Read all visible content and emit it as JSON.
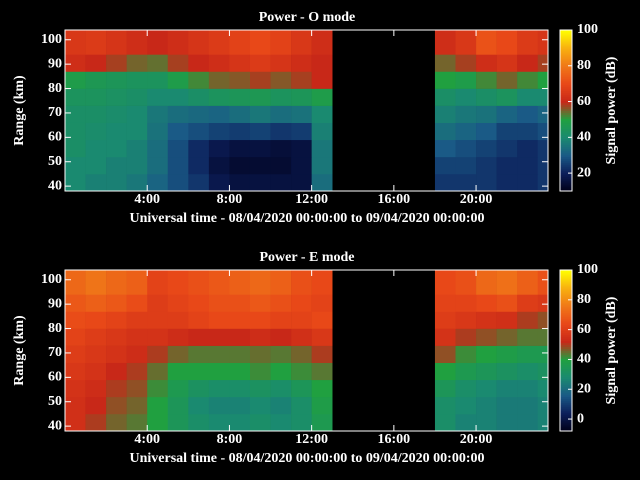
{
  "chart_data": [
    {
      "type": "heatmap",
      "title": "Power - O mode",
      "x_label": "Universal time - 08/04/2020 00:00:00 to 09/04/2020 00:00:00",
      "y_label": "Range (km)",
      "colorbar_label": "Signal power (dB)",
      "xlim": [
        0,
        23.5
      ],
      "ylim": [
        38,
        104
      ],
      "xticks": [
        {
          "value": 4,
          "label": "4:00"
        },
        {
          "value": 8,
          "label": "8:00"
        },
        {
          "value": 12,
          "label": "12:00"
        },
        {
          "value": 16,
          "label": "16:00"
        },
        {
          "value": 20,
          "label": "20:00"
        }
      ],
      "yticks": [
        40,
        50,
        60,
        70,
        80,
        90,
        100
      ],
      "clim": [
        10,
        100
      ],
      "cticks": [
        20,
        40,
        60,
        80,
        100
      ],
      "colors": [
        "#000018",
        "#0c1e5a",
        "#1a5a86",
        "#1a8a70",
        "#20a040",
        "#c82818",
        "#e84818",
        "#f07818",
        "#f8b010",
        "#ffff00"
      ],
      "x_edges": [
        0,
        1,
        2,
        3,
        4,
        5,
        6,
        7,
        8,
        9,
        10,
        11,
        12,
        13,
        14,
        15,
        16,
        17,
        18,
        19,
        20,
        21,
        22,
        23,
        23.5
      ],
      "y_edges": [
        38,
        45,
        52,
        59,
        66,
        73,
        80,
        87,
        94,
        104
      ],
      "z": [
        [
          40,
          38,
          38,
          36,
          32,
          28,
          24,
          18,
          16,
          16,
          16,
          16,
          34,
          null,
          null,
          null,
          null,
          null,
          24,
          24,
          24,
          22,
          22,
          24
        ],
        [
          40,
          40,
          38,
          38,
          34,
          28,
          22,
          16,
          14,
          14,
          14,
          16,
          36,
          null,
          null,
          null,
          null,
          null,
          26,
          26,
          24,
          22,
          22,
          24
        ],
        [
          42,
          40,
          40,
          38,
          34,
          28,
          22,
          18,
          16,
          16,
          15,
          16,
          36,
          null,
          null,
          null,
          null,
          null,
          30,
          28,
          26,
          24,
          22,
          24
        ],
        [
          42,
          41,
          40,
          40,
          35,
          30,
          28,
          26,
          25,
          26,
          24,
          25,
          38,
          null,
          null,
          null,
          null,
          null,
          34,
          32,
          30,
          26,
          26,
          28
        ],
        [
          42,
          42,
          41,
          40,
          36,
          34,
          33,
          32,
          34,
          36,
          34,
          35,
          40,
          null,
          null,
          null,
          null,
          null,
          38,
          36,
          35,
          32,
          30,
          32
        ],
        [
          44,
          44,
          43,
          42,
          40,
          40,
          42,
          44,
          45,
          46,
          44,
          45,
          48,
          null,
          null,
          null,
          null,
          null,
          42,
          40,
          42,
          44,
          40,
          40
        ],
        [
          48,
          46,
          45,
          44,
          44,
          48,
          52,
          55,
          56,
          58,
          56,
          58,
          60,
          null,
          null,
          null,
          null,
          null,
          50,
          48,
          52,
          55,
          52,
          50
        ],
        [
          62,
          60,
          58,
          55,
          54,
          58,
          60,
          62,
          64,
          66,
          64,
          62,
          60,
          null,
          null,
          null,
          null,
          null,
          55,
          58,
          62,
          64,
          60,
          58
        ],
        [
          65,
          66,
          64,
          62,
          60,
          62,
          64,
          66,
          68,
          70,
          68,
          65,
          62,
          null,
          null,
          null,
          null,
          null,
          62,
          65,
          72,
          70,
          66,
          64
        ]
      ]
    },
    {
      "type": "heatmap",
      "title": "Power - E mode",
      "x_label": "Universal time - 08/04/2020 00:00:00 to 09/04/2020 00:00:00",
      "y_label": "Range (km)",
      "colorbar_label": "Signal power (dB)",
      "xlim": [
        0,
        23.5
      ],
      "ylim": [
        38,
        104
      ],
      "xticks": [
        {
          "value": 4,
          "label": "4:00"
        },
        {
          "value": 8,
          "label": "8:00"
        },
        {
          "value": 12,
          "label": "12:00"
        },
        {
          "value": 16,
          "label": "16:00"
        },
        {
          "value": 20,
          "label": "20:00"
        }
      ],
      "yticks": [
        40,
        50,
        60,
        70,
        80,
        90,
        100
      ],
      "clim": [
        -8,
        100
      ],
      "cticks": [
        0,
        20,
        40,
        60,
        80,
        100
      ],
      "colors": [
        "#000018",
        "#0c1e5a",
        "#1a5a86",
        "#1a8a70",
        "#20a040",
        "#c82818",
        "#e84818",
        "#f07818",
        "#f8b010",
        "#ffff00"
      ],
      "x_edges": [
        0,
        1,
        2,
        3,
        4,
        5,
        6,
        7,
        8,
        9,
        10,
        11,
        12,
        13,
        14,
        15,
        16,
        17,
        18,
        19,
        20,
        21,
        22,
        23,
        23.5
      ],
      "y_edges": [
        38,
        45,
        52,
        59,
        66,
        73,
        80,
        87,
        94,
        104
      ],
      "z": [
        [
          55,
          50,
          46,
          44,
          40,
          34,
          30,
          28,
          28,
          30,
          28,
          30,
          36,
          null,
          null,
          null,
          null,
          null,
          30,
          26,
          26,
          24,
          24,
          26
        ],
        [
          55,
          52,
          48,
          46,
          40,
          34,
          28,
          26,
          26,
          28,
          26,
          30,
          38,
          null,
          null,
          null,
          null,
          null,
          30,
          28,
          26,
          24,
          24,
          26
        ],
        [
          56,
          54,
          50,
          48,
          42,
          36,
          32,
          30,
          30,
          32,
          30,
          34,
          40,
          null,
          null,
          null,
          null,
          null,
          34,
          30,
          28,
          26,
          26,
          28
        ],
        [
          58,
          56,
          52,
          50,
          45,
          40,
          40,
          40,
          40,
          42,
          40,
          42,
          44,
          null,
          null,
          null,
          null,
          null,
          40,
          36,
          34,
          32,
          30,
          32
        ],
        [
          60,
          58,
          56,
          54,
          50,
          46,
          44,
          44,
          44,
          45,
          44,
          46,
          50,
          null,
          null,
          null,
          null,
          null,
          48,
          42,
          40,
          38,
          36,
          36
        ],
        [
          62,
          60,
          58,
          56,
          56,
          54,
          52,
          52,
          52,
          54,
          52,
          55,
          58,
          null,
          null,
          null,
          null,
          null,
          56,
          50,
          48,
          46,
          44,
          44
        ],
        [
          65,
          64,
          62,
          60,
          60,
          60,
          62,
          64,
          64,
          64,
          62,
          62,
          64,
          null,
          null,
          null,
          null,
          null,
          60,
          58,
          56,
          55,
          50,
          48
        ],
        [
          68,
          70,
          68,
          65,
          60,
          62,
          64,
          66,
          66,
          68,
          66,
          64,
          62,
          null,
          null,
          null,
          null,
          null,
          62,
          62,
          64,
          66,
          60,
          58
        ],
        [
          72,
          75,
          72,
          70,
          62,
          64,
          66,
          68,
          70,
          72,
          70,
          66,
          64,
          null,
          null,
          null,
          null,
          null,
          64,
          66,
          72,
          74,
          70,
          66
        ]
      ]
    }
  ]
}
